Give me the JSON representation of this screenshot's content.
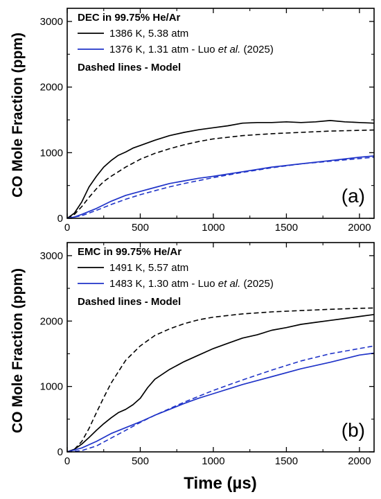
{
  "xlabel": "Time (µs)",
  "ylabel": "CO Mole Fraction (ppm)",
  "chart_data": [
    {
      "type": "line",
      "panel_label": "(a)",
      "legend_title": "DEC in 99.75% He/Ar",
      "legend_note": "Dashed lines - Model",
      "xlim": [
        0,
        2100
      ],
      "ylim": [
        0,
        3200
      ],
      "x_ticks": [
        0,
        500,
        1000,
        1500,
        2000
      ],
      "y_ticks": [
        0,
        1000,
        2000,
        3000
      ],
      "series": [
        {
          "name": "1386 K, 5.38 atm",
          "color": "#000000",
          "style": "solid",
          "x": [
            0,
            50,
            100,
            150,
            200,
            250,
            300,
            350,
            400,
            450,
            500,
            600,
            700,
            800,
            900,
            1000,
            1100,
            1200,
            1300,
            1400,
            1500,
            1600,
            1700,
            1800,
            1900,
            2000,
            2100
          ],
          "y": [
            0,
            80,
            250,
            480,
            640,
            780,
            880,
            960,
            1010,
            1070,
            1110,
            1190,
            1260,
            1310,
            1350,
            1380,
            1410,
            1450,
            1460,
            1460,
            1470,
            1460,
            1470,
            1490,
            1470,
            1460,
            1450
          ]
        },
        {
          "name": "Model (1386 K)",
          "color": "#000000",
          "style": "dashed",
          "x": [
            0,
            50,
            100,
            150,
            200,
            250,
            300,
            400,
            500,
            600,
            700,
            800,
            900,
            1000,
            1200,
            1400,
            1600,
            1800,
            2000,
            2100
          ],
          "y": [
            0,
            60,
            180,
            320,
            450,
            560,
            640,
            780,
            900,
            990,
            1060,
            1120,
            1170,
            1210,
            1260,
            1290,
            1310,
            1330,
            1340,
            1345
          ]
        },
        {
          "name": "1376 K, 1.31 atm - Luo et al. (2025)",
          "color": "#1f33c8",
          "style": "solid",
          "x": [
            0,
            50,
            100,
            200,
            300,
            400,
            500,
            600,
            700,
            800,
            900,
            1000,
            1200,
            1400,
            1600,
            1800,
            2000,
            2100
          ],
          "y": [
            0,
            20,
            60,
            150,
            260,
            350,
            410,
            470,
            530,
            570,
            610,
            640,
            710,
            780,
            830,
            880,
            930,
            950
          ]
        },
        {
          "name": "Model (1376 K)",
          "color": "#1f33c8",
          "style": "dashed",
          "x": [
            0,
            100,
            200,
            300,
            400,
            500,
            600,
            700,
            800,
            1000,
            1200,
            1400,
            1600,
            1800,
            2000,
            2100
          ],
          "y": [
            0,
            40,
            120,
            210,
            290,
            360,
            420,
            480,
            530,
            620,
            700,
            770,
            830,
            870,
            910,
            930
          ]
        }
      ]
    },
    {
      "type": "line",
      "panel_label": "(b)",
      "legend_title": "EMC in 99.75% He/Ar",
      "legend_note": "Dashed lines - Model",
      "xlim": [
        0,
        2100
      ],
      "ylim": [
        0,
        3200
      ],
      "x_ticks": [
        0,
        500,
        1000,
        1500,
        2000
      ],
      "y_ticks": [
        0,
        1000,
        2000,
        3000
      ],
      "series": [
        {
          "name": "1491 K, 5.57 atm",
          "color": "#000000",
          "style": "solid",
          "x": [
            0,
            50,
            100,
            150,
            200,
            250,
            300,
            350,
            400,
            450,
            500,
            550,
            600,
            700,
            800,
            900,
            1000,
            1100,
            1200,
            1300,
            1400,
            1500,
            1600,
            1700,
            1800,
            1900,
            2000,
            2100
          ],
          "y": [
            0,
            40,
            120,
            220,
            330,
            430,
            520,
            600,
            650,
            720,
            820,
            980,
            1110,
            1260,
            1380,
            1480,
            1580,
            1660,
            1740,
            1790,
            1860,
            1900,
            1950,
            1980,
            2010,
            2040,
            2070,
            2100
          ]
        },
        {
          "name": "Model (1491 K)",
          "color": "#000000",
          "style": "dashed",
          "x": [
            0,
            50,
            100,
            150,
            200,
            250,
            300,
            400,
            500,
            600,
            700,
            800,
            900,
            1000,
            1200,
            1400,
            1600,
            1800,
            2000,
            2100
          ],
          "y": [
            0,
            40,
            160,
            360,
            600,
            830,
            1050,
            1400,
            1620,
            1780,
            1880,
            1960,
            2020,
            2060,
            2110,
            2140,
            2160,
            2180,
            2195,
            2200
          ]
        },
        {
          "name": "1483 K, 1.30 atm - Luo et al. (2025)",
          "color": "#1f33c8",
          "style": "solid",
          "x": [
            0,
            100,
            200,
            300,
            400,
            500,
            600,
            700,
            800,
            900,
            1000,
            1100,
            1200,
            1400,
            1600,
            1800,
            2000,
            2100
          ],
          "y": [
            0,
            60,
            160,
            280,
            370,
            460,
            560,
            650,
            740,
            820,
            890,
            960,
            1030,
            1150,
            1270,
            1370,
            1480,
            1510
          ]
        },
        {
          "name": "Model (1483 K)",
          "color": "#1f33c8",
          "style": "dashed",
          "x": [
            0,
            100,
            200,
            300,
            400,
            500,
            600,
            700,
            800,
            1000,
            1200,
            1400,
            1600,
            1800,
            2000,
            2100
          ],
          "y": [
            0,
            20,
            90,
            210,
            330,
            450,
            560,
            660,
            760,
            940,
            1100,
            1250,
            1390,
            1500,
            1580,
            1620
          ]
        }
      ]
    }
  ]
}
